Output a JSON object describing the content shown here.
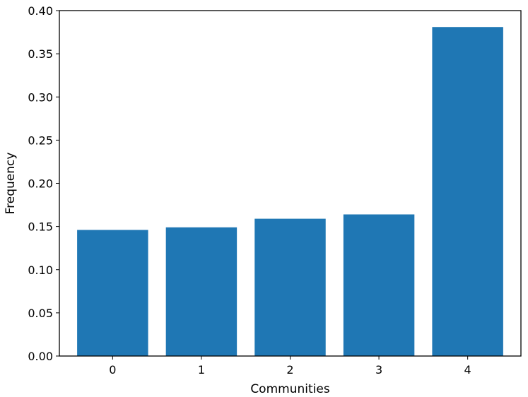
{
  "chart_data": {
    "type": "bar",
    "categories": [
      "0",
      "1",
      "2",
      "3",
      "4"
    ],
    "values": [
      0.146,
      0.149,
      0.159,
      0.164,
      0.381
    ],
    "title": "",
    "xlabel": "Communities",
    "ylabel": "Frequency",
    "ylim": [
      0,
      0.4
    ],
    "yticks": [
      "0.00",
      "0.05",
      "0.10",
      "0.15",
      "0.20",
      "0.25",
      "0.30",
      "0.35",
      "0.40"
    ],
    "grid": false,
    "legend": "none",
    "colors": {
      "bar": "#1f77b4",
      "axis": "#000000"
    }
  }
}
